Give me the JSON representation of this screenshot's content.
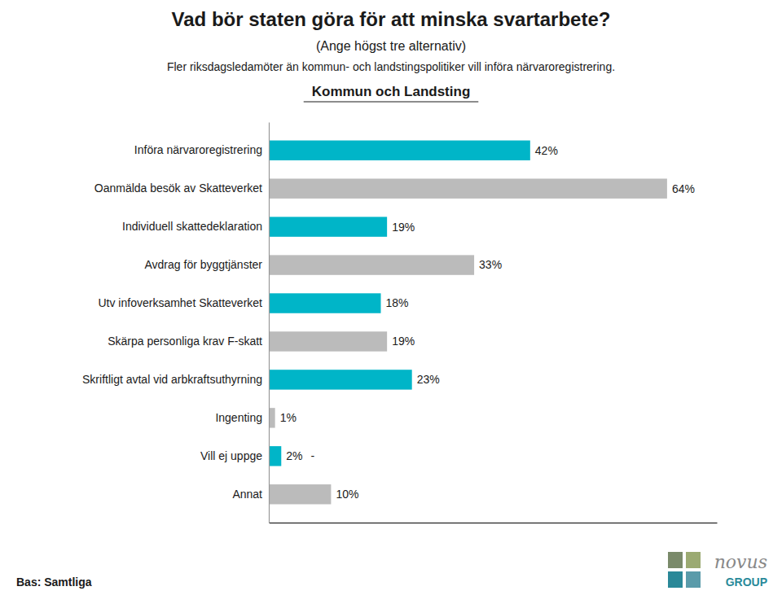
{
  "chart_data": {
    "type": "bar",
    "orientation": "horizontal",
    "title": "Vad bör staten göra för att minska svartarbete?",
    "subtitle": "(Ange högst tre alternativ)",
    "annotations": [
      {
        "text": "Fler riksdagsledamöter än kommun- och landstingspolitiker vill införa närvaroregistrering."
      },
      {
        "text": "Kommun och Landsting"
      },
      {
        "text": "Bas: Samtliga"
      },
      {
        "text": "novus"
      },
      {
        "text": "GROUP"
      },
      {
        "text": "-",
        "category": "Vill ej uppge"
      }
    ],
    "categories": [
      "Införa närvaroregistrering",
      "Oanmälda besök av Skatteverket",
      "Individuell skattedeklaration",
      "Avdrag för byggtjänster",
      "Utv infoverksamhet Skatteverket",
      "Skärpa personliga krav F-skatt",
      "Skriftligt avtal vid arbkraftsuthyrning",
      "Ingenting",
      "Vill ej uppge",
      "Annat"
    ],
    "values": [
      42,
      64,
      19,
      33,
      18,
      19,
      23,
      1,
      2,
      10
    ],
    "value_labels": [
      "42%",
      "64%",
      "19%",
      "33%",
      "18%",
      "19%",
      "23%",
      "1%",
      "2%",
      "10%"
    ],
    "data_labels": true,
    "colors": [
      "#00B5C8",
      "#BBBBBB",
      "#00B5C8",
      "#BBBBBB",
      "#00B5C8",
      "#BBBBBB",
      "#00B5C8",
      "#BBBBBB",
      "#00B5C8",
      "#BBBBBB"
    ],
    "xlim": [
      0,
      72
    ],
    "xticks": [],
    "tick_labels": "y",
    "grid": false
  }
}
